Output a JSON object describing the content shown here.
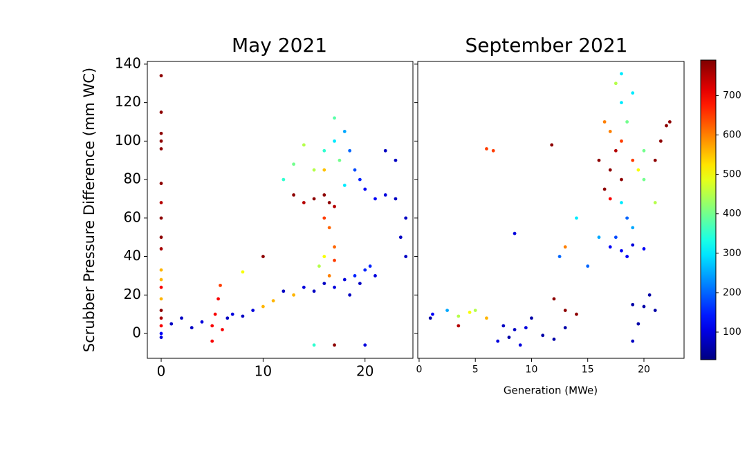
{
  "chart_data": [
    {
      "type": "scatter",
      "title": "May 2021",
      "y_label": "Scrubber Pressure Difference (mm WC)",
      "xlim": [
        -1.36,
        24.7
      ],
      "ylim": [
        -12.9,
        141.4
      ],
      "xticks": [
        0,
        10,
        20
      ],
      "yticks": [
        0,
        20,
        40,
        60,
        80,
        100,
        120,
        140
      ],
      "x": [
        0,
        0,
        0,
        0,
        0,
        0,
        0,
        0,
        0,
        0,
        0,
        0,
        0,
        0,
        0,
        0,
        0,
        0,
        0,
        1,
        2,
        3,
        4,
        5,
        5,
        5.3,
        5.6,
        5.8,
        6,
        6.5,
        7,
        8,
        9,
        10,
        11,
        12,
        13,
        14,
        15,
        16,
        17,
        18,
        19,
        20,
        20.5,
        21,
        19.5,
        18.5,
        12,
        13,
        14,
        15,
        16,
        16.5,
        17,
        16,
        16.5,
        17,
        16,
        15.5,
        17,
        16.5,
        15,
        16,
        17,
        18,
        17.5,
        18.5,
        19,
        19.5,
        20,
        21,
        22,
        23,
        22,
        23,
        24,
        23.5,
        24,
        17,
        14,
        13,
        18,
        16,
        15,
        17,
        20,
        10,
        8
      ],
      "y": [
        134,
        115,
        104,
        100,
        96,
        78,
        68,
        60,
        50,
        44,
        33,
        28,
        24,
        18,
        12,
        8,
        4,
        0,
        -2,
        5,
        8,
        3,
        6,
        -4,
        4,
        10,
        18,
        25,
        2,
        8,
        10,
        9,
        12,
        14,
        17,
        22,
        20,
        24,
        22,
        26,
        24,
        28,
        30,
        33,
        35,
        30,
        26,
        20,
        80,
        72,
        68,
        70,
        72,
        68,
        66,
        60,
        55,
        45,
        40,
        35,
        38,
        30,
        85,
        95,
        100,
        105,
        90,
        95,
        85,
        80,
        75,
        70,
        72,
        70,
        95,
        90,
        60,
        50,
        40,
        112,
        98,
        88,
        77,
        85,
        -6,
        -6,
        -6,
        40,
        32
      ],
      "c": [
        780,
        780,
        780,
        780,
        780,
        780,
        750,
        780,
        780,
        760,
        560,
        560,
        700,
        560,
        780,
        760,
        700,
        120,
        100,
        80,
        80,
        80,
        100,
        700,
        700,
        700,
        700,
        650,
        700,
        80,
        100,
        80,
        100,
        560,
        560,
        80,
        560,
        100,
        80,
        80,
        100,
        100,
        150,
        150,
        150,
        100,
        80,
        80,
        350,
        780,
        750,
        780,
        780,
        780,
        750,
        650,
        620,
        620,
        500,
        450,
        650,
        600,
        450,
        350,
        300,
        250,
        400,
        200,
        180,
        150,
        120,
        120,
        100,
        80,
        80,
        80,
        80,
        80,
        80,
        380,
        450,
        400,
        300,
        550,
        350,
        780,
        100,
        780,
        500
      ]
    },
    {
      "type": "scatter",
      "title": "September 2021",
      "x_label": "Generation (MWe)",
      "xlim": [
        -0.12,
        23.57
      ],
      "ylim": [
        -12.9,
        141.4
      ],
      "sharey": true,
      "xticks": [
        0,
        5,
        10,
        15,
        20
      ],
      "x": [
        1,
        1.2,
        2.5,
        3.5,
        3.5,
        4.5,
        5,
        6,
        7,
        8,
        8.5,
        9,
        7.5,
        9.5,
        10,
        11,
        12,
        13,
        8.5,
        6,
        6.6,
        11.8,
        12.5,
        13,
        14,
        15,
        16,
        12,
        13,
        14,
        17,
        18,
        19,
        18.5,
        17.5,
        20,
        19,
        20,
        21,
        19.5,
        20.5,
        19,
        17,
        17.5,
        18,
        16.5,
        18,
        17,
        18.5,
        18,
        19,
        17.5,
        18,
        19,
        19.5,
        20,
        20,
        21,
        21.5,
        22,
        22.3,
        21,
        18,
        18.5,
        19,
        17,
        16,
        16.5
      ],
      "y": [
        8,
        10,
        12,
        9,
        4,
        11,
        12,
        8,
        -4,
        -2,
        2,
        -6,
        4,
        3,
        8,
        -1,
        -3,
        3,
        52,
        96,
        95,
        98,
        40,
        45,
        60,
        35,
        50,
        18,
        12,
        10,
        45,
        43,
        46,
        40,
        50,
        44,
        15,
        14,
        12,
        5,
        20,
        -4,
        85,
        95,
        80,
        75,
        100,
        105,
        110,
        120,
        125,
        130,
        135,
        90,
        85,
        80,
        95,
        90,
        100,
        108,
        110,
        68,
        68,
        60,
        55,
        70,
        90,
        110
      ],
      "c": [
        60,
        120,
        250,
        450,
        750,
        500,
        450,
        560,
        100,
        60,
        80,
        100,
        80,
        100,
        60,
        60,
        60,
        60,
        100,
        650,
        650,
        780,
        200,
        600,
        300,
        200,
        250,
        780,
        780,
        780,
        120,
        120,
        100,
        120,
        180,
        120,
        60,
        60,
        60,
        60,
        60,
        80,
        780,
        750,
        780,
        780,
        650,
        600,
        400,
        300,
        300,
        450,
        300,
        650,
        500,
        400,
        400,
        780,
        780,
        780,
        780,
        450,
        300,
        200,
        250,
        700,
        780,
        600
      ],
      "colormap": "jet",
      "clim": [
        30,
        790
      ],
      "cticks": [
        100,
        200,
        300,
        400,
        500,
        600,
        700
      ]
    }
  ]
}
